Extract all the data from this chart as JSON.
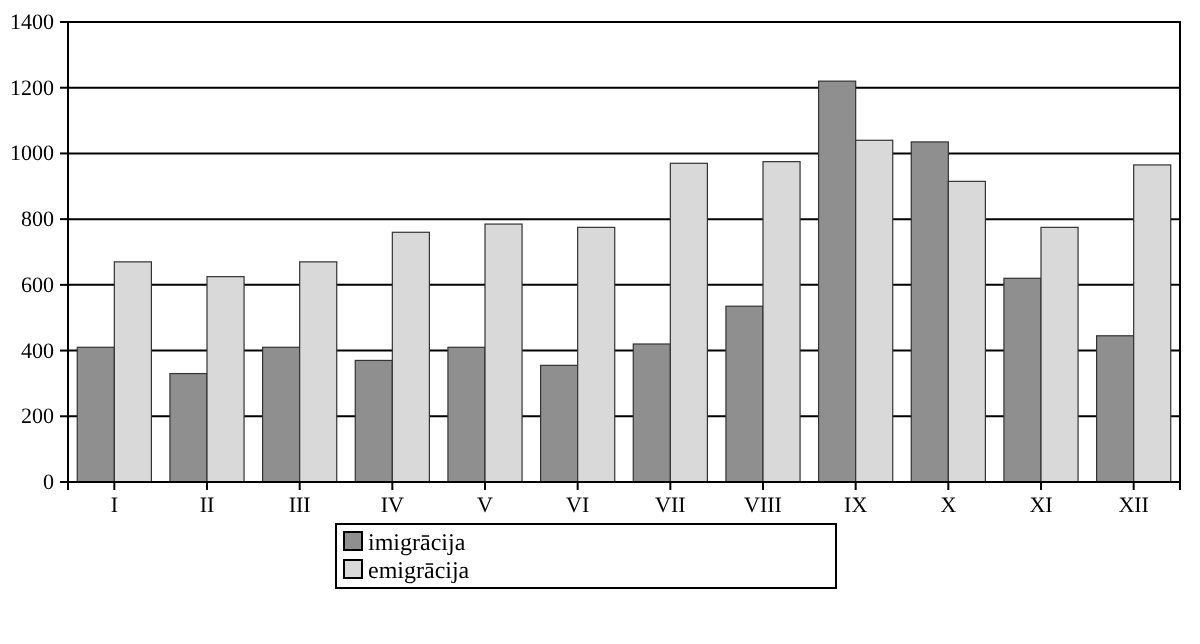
{
  "chart_data": {
    "type": "bar",
    "categories": [
      "I",
      "II",
      "III",
      "IV",
      "V",
      "VI",
      "VII",
      "VIII",
      "IX",
      "X",
      "XI",
      "XII"
    ],
    "series": [
      {
        "name": "imigrācija",
        "color": "#8f8f8f",
        "values": [
          410,
          330,
          410,
          370,
          410,
          355,
          420,
          535,
          1220,
          1035,
          620,
          445
        ]
      },
      {
        "name": "emigrācija",
        "color": "#d9d9d9",
        "values": [
          670,
          625,
          670,
          760,
          785,
          775,
          970,
          975,
          1040,
          915,
          775,
          965
        ]
      }
    ],
    "ylim": [
      0,
      1400
    ],
    "yticks": [
      0,
      200,
      400,
      600,
      800,
      1000,
      1200,
      1400
    ],
    "grid": "y",
    "legend": "bottom"
  }
}
